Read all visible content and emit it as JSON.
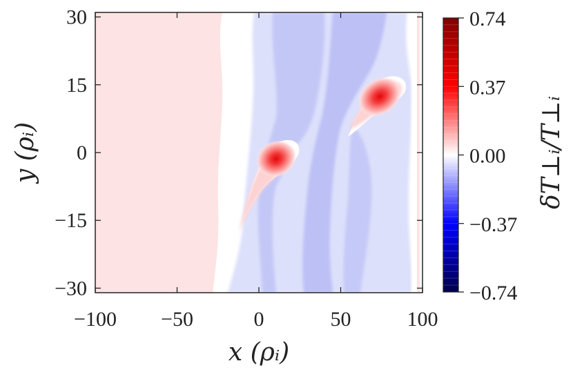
{
  "chart_data": {
    "type": "heatmap",
    "title": "",
    "xlabel": "x (ρᵢ)",
    "ylabel": "y (ρᵢ)",
    "xlim": [
      -100,
      100
    ],
    "ylim": [
      -31,
      31
    ],
    "x_ticks": [
      -100,
      -50,
      0,
      50,
      100
    ],
    "x_tick_labels": [
      "−100",
      "−50",
      "0",
      "50",
      "100"
    ],
    "y_ticks": [
      -30,
      -15,
      0,
      15,
      30
    ],
    "y_tick_labels": [
      "−30",
      "−15",
      "0",
      "15",
      "30"
    ],
    "colorbar": {
      "label": "δT⊥ᵢ/T⊥ᵢ",
      "range": [
        -0.74,
        0.74
      ],
      "ticks": [
        0.74,
        0.37,
        0.0,
        -0.37,
        -0.74
      ],
      "tick_labels": [
        "0.74",
        "0.37",
        "0.00",
        "−0.37",
        "−0.74"
      ],
      "colormap": "seismic",
      "levels": 40
    },
    "regions": [
      {
        "name": "background-positive",
        "x_range": [
          -100,
          -25
        ],
        "y_range": [
          -31,
          31
        ],
        "value": 0.05
      },
      {
        "name": "neutral-band",
        "x_range": [
          -25,
          0
        ],
        "y_range": [
          -31,
          31
        ],
        "value": 0.0
      },
      {
        "name": "negative-band",
        "x_range": [
          0,
          90
        ],
        "y_range": [
          -31,
          31
        ],
        "value": -0.1
      }
    ],
    "peaks": [
      {
        "x": 10,
        "y": -1,
        "value": 0.55
      },
      {
        "x": 73,
        "y": 13,
        "value": 0.6
      }
    ],
    "grid": false
  },
  "colors": {
    "neg_dark": "#00004c",
    "neg_mid": "#0000ff",
    "zero": "#ffffff",
    "pos_mid": "#ff0000",
    "pos_dark": "#800000"
  }
}
